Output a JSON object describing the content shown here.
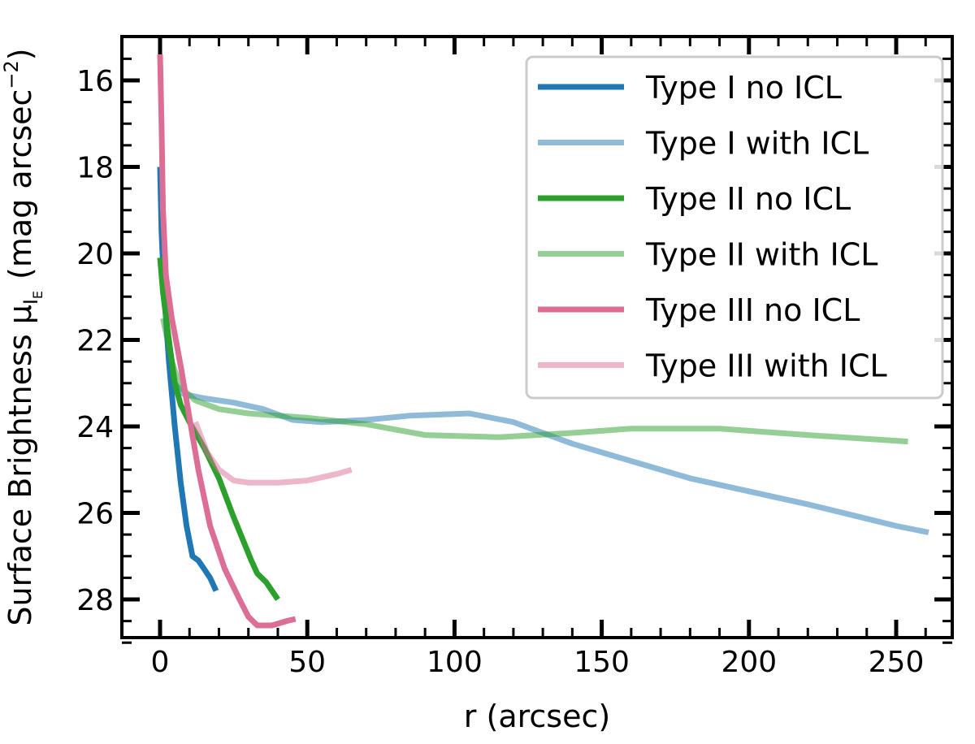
{
  "chart_data": {
    "type": "line",
    "title": "",
    "xlabel": "r (arcsec)",
    "ylabel": "Surface Brightness μ",
    "ylabel_sub": "I",
    "ylabel_subsub": "E",
    "ylabel_unit": "(mag arcsec",
    "ylabel_unit_exp": "−2",
    "ylabel_unit_close": ")",
    "xlim": [
      -13,
      269
    ],
    "ylim": [
      29.0,
      15.0
    ],
    "y_inverted": true,
    "grid": false,
    "legend_placement": "top-right",
    "xticks": [
      0,
      50,
      100,
      150,
      200,
      250
    ],
    "xtick_labels": [
      "0",
      "50",
      "100",
      "150",
      "200",
      "250"
    ],
    "yticks": [
      16,
      18,
      20,
      22,
      24,
      26,
      28
    ],
    "ytick_labels": [
      "16",
      "18",
      "20",
      "22",
      "24",
      "26",
      "28"
    ],
    "series": [
      {
        "name": "Type I no ICL",
        "color": "#1f77b4",
        "opacity": 1,
        "x": [
          0,
          0.5,
          1.5,
          3,
          5,
          7,
          9,
          11,
          13,
          15,
          17,
          19
        ],
        "y": [
          18,
          19.5,
          21,
          22.5,
          24,
          25.3,
          26.3,
          27,
          27.1,
          27.3,
          27.5,
          27.8
        ]
      },
      {
        "name": "Type I with ICL",
        "color": "#1f77b4",
        "opacity": 0.5,
        "x": [
          3,
          5,
          8,
          15,
          25,
          35,
          45,
          55,
          70,
          85,
          105,
          120,
          140,
          160,
          180,
          200,
          220,
          238,
          250,
          261
        ],
        "y": [
          22,
          23,
          23.25,
          23.35,
          23.45,
          23.6,
          23.85,
          23.9,
          23.85,
          23.75,
          23.7,
          23.9,
          24.4,
          24.8,
          25.2,
          25.5,
          25.8,
          26.1,
          26.3,
          26.45
        ]
      },
      {
        "name": "Type II no ICL",
        "color": "#2ca02c",
        "opacity": 1,
        "x": [
          0,
          1,
          3,
          5,
          7,
          10,
          15,
          20,
          25,
          28,
          31,
          33,
          36,
          40
        ],
        "y": [
          20.1,
          20.9,
          22,
          23,
          23.5,
          23.9,
          24.5,
          25.2,
          26.1,
          26.6,
          27.1,
          27.4,
          27.6,
          28
        ]
      },
      {
        "name": "Type II with ICL",
        "color": "#2ca02c",
        "opacity": 0.5,
        "x": [
          1,
          4,
          7,
          12,
          20,
          30,
          50,
          70,
          90,
          115,
          140,
          160,
          190,
          220,
          254
        ],
        "y": [
          21.5,
          22.5,
          23.1,
          23.4,
          23.6,
          23.7,
          23.8,
          23.95,
          24.2,
          24.25,
          24.15,
          24.05,
          24.05,
          24.2,
          24.35
        ]
      },
      {
        "name": "Type III no ICL",
        "color": "#dc6d95",
        "opacity": 1,
        "x": [
          0,
          0.5,
          1,
          2,
          4,
          7,
          10,
          13,
          17,
          22,
          27,
          30,
          33,
          38,
          43,
          46
        ],
        "y": [
          15.4,
          17,
          19,
          20.5,
          21.5,
          22.6,
          23.8,
          25,
          26.3,
          27.3,
          28,
          28.4,
          28.6,
          28.6,
          28.5,
          28.45
        ]
      },
      {
        "name": "Type III with ICL",
        "color": "#dc6d95",
        "opacity": 0.5,
        "x": [
          12,
          16,
          20,
          25,
          30,
          40,
          50,
          60,
          65
        ],
        "y": [
          23.9,
          24.6,
          25,
          25.25,
          25.3,
          25.3,
          25.25,
          25.1,
          25.0
        ]
      }
    ]
  }
}
